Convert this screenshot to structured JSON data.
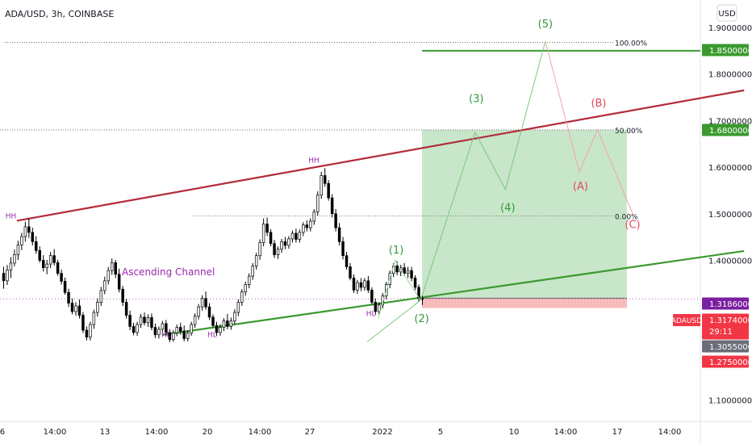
{
  "header": {
    "symbol_title": "ADA/USD, 3h, COINBASE",
    "currency_button": "USD"
  },
  "colors": {
    "up_candle": "#ffffff",
    "down_candle": "#000000",
    "resistance_line": "#b22b3b",
    "support_line": "#3a9a2e",
    "wave_green": "#2e9a3a",
    "wave_red": "#e04a5a",
    "profit_zone": "#c8e6c9",
    "loss_zone": "#f8bcbc",
    "last_price_bg": "#f23645",
    "purple_label": "#9c27b0"
  },
  "chart_data": {
    "type": "candlestick",
    "title": "ADA/USD, 3h, COINBASE",
    "ylim": [
      1.05,
      1.95
    ],
    "y_ticks": [
      "1.90000000",
      "1.80000000",
      "1.70000000",
      "1.60000000",
      "1.50000000",
      "1.40000000",
      "1.10000000"
    ],
    "x_ticks": [
      "6",
      "14:00",
      "13",
      "14:00",
      "20",
      "14:00",
      "27",
      "2022",
      "5",
      "10",
      "14:00",
      "17",
      "14:00"
    ],
    "price_labels": [
      {
        "text": "1.85000000",
        "kind": "green"
      },
      {
        "text": "1.68000000",
        "kind": "green"
      },
      {
        "text": "1.31860000",
        "kind": "purple"
      },
      {
        "text": "1.31740000",
        "kind": "red"
      },
      {
        "text": "29:11",
        "kind": "red-sub"
      },
      {
        "text": "1.30550000",
        "kind": "gray"
      },
      {
        "text": "1.27500000",
        "kind": "red"
      }
    ],
    "symbol_tag": "ADAUSD",
    "fib_levels": [
      {
        "label": "100.00%",
        "value": 1.868
      },
      {
        "label": "50.00%",
        "value": 1.68
      },
      {
        "label": "0.00%",
        "value": 1.495
      }
    ],
    "current_price": 1.3174,
    "position": {
      "entry": 1.3186,
      "target": 1.68,
      "stop": 1.2975
    },
    "channel_annotation": "Ascending Channel",
    "swing_labels": [
      {
        "text": "HH",
        "x": 0.5,
        "y": 1.49
      },
      {
        "text": "HH",
        "x": 25.5,
        "y": 1.61
      },
      {
        "text": "HL",
        "x": 13.3,
        "y": 1.235
      },
      {
        "text": "HL",
        "x": 17.1,
        "y": 1.235
      },
      {
        "text": "HL",
        "x": 30.2,
        "y": 1.28
      }
    ],
    "wave_labels": [
      {
        "text": "(1)",
        "x": 32.3,
        "y": 1.415,
        "color": "green"
      },
      {
        "text": "(2)",
        "x": 34.4,
        "y": 1.267,
        "color": "green"
      },
      {
        "text": "(3)",
        "x": 38.9,
        "y": 1.74,
        "color": "green"
      },
      {
        "text": "(4)",
        "x": 41.5,
        "y": 1.506,
        "color": "green"
      },
      {
        "text": "(5)",
        "x": 44.6,
        "y": 1.9,
        "color": "green"
      },
      {
        "text": "(A)",
        "x": 47.5,
        "y": 1.552,
        "color": "red"
      },
      {
        "text": "(B)",
        "x": 49.0,
        "y": 1.73,
        "color": "red"
      },
      {
        "text": "(C)",
        "x": 51.8,
        "y": 1.469,
        "color": "red"
      }
    ],
    "resistance_line": {
      "x": [
        1.0,
        61.0
      ],
      "y": [
        1.485,
        1.765
      ]
    },
    "support_line": {
      "x": [
        13.0,
        61.0
      ],
      "y": [
        1.24,
        1.42
      ]
    },
    "wave_path": {
      "x": [
        29.9,
        34.3,
        38.8,
        41.3,
        44.6,
        47.4,
        48.9,
        51.8
      ],
      "y": [
        1.225,
        1.314,
        1.675,
        1.552,
        1.87,
        1.59,
        1.68,
        1.5
      ]
    },
    "wave1_path": {
      "x": [
        30.8,
        32.2,
        34.3
      ],
      "y": [
        1.275,
        1.4,
        1.314
      ]
    },
    "candles": [
      {
        "o": 1.372,
        "h": 1.386,
        "l": 1.339,
        "c": 1.356
      },
      {
        "o": 1.356,
        "h": 1.39,
        "l": 1.347,
        "c": 1.379
      },
      {
        "o": 1.379,
        "h": 1.407,
        "l": 1.362,
        "c": 1.394
      },
      {
        "o": 1.394,
        "h": 1.423,
        "l": 1.387,
        "c": 1.412
      },
      {
        "o": 1.412,
        "h": 1.442,
        "l": 1.401,
        "c": 1.433
      },
      {
        "o": 1.433,
        "h": 1.459,
        "l": 1.422,
        "c": 1.451
      },
      {
        "o": 1.451,
        "h": 1.483,
        "l": 1.44,
        "c": 1.472
      },
      {
        "o": 1.472,
        "h": 1.49,
        "l": 1.448,
        "c": 1.46
      },
      {
        "o": 1.46,
        "h": 1.47,
        "l": 1.432,
        "c": 1.44
      },
      {
        "o": 1.44,
        "h": 1.452,
        "l": 1.414,
        "c": 1.421
      },
      {
        "o": 1.421,
        "h": 1.43,
        "l": 1.395,
        "c": 1.4
      },
      {
        "o": 1.4,
        "h": 1.411,
        "l": 1.376,
        "c": 1.384
      },
      {
        "o": 1.384,
        "h": 1.401,
        "l": 1.37,
        "c": 1.392
      },
      {
        "o": 1.392,
        "h": 1.418,
        "l": 1.383,
        "c": 1.41
      },
      {
        "o": 1.41,
        "h": 1.424,
        "l": 1.389,
        "c": 1.395
      },
      {
        "o": 1.395,
        "h": 1.401,
        "l": 1.367,
        "c": 1.372
      },
      {
        "o": 1.372,
        "h": 1.38,
        "l": 1.348,
        "c": 1.355
      },
      {
        "o": 1.355,
        "h": 1.363,
        "l": 1.326,
        "c": 1.331
      },
      {
        "o": 1.331,
        "h": 1.339,
        "l": 1.3,
        "c": 1.308
      },
      {
        "o": 1.308,
        "h": 1.318,
        "l": 1.284,
        "c": 1.29
      },
      {
        "o": 1.29,
        "h": 1.31,
        "l": 1.281,
        "c": 1.302
      },
      {
        "o": 1.302,
        "h": 1.316,
        "l": 1.275,
        "c": 1.282
      },
      {
        "o": 1.282,
        "h": 1.289,
        "l": 1.244,
        "c": 1.25
      },
      {
        "o": 1.25,
        "h": 1.258,
        "l": 1.228,
        "c": 1.235
      },
      {
        "o": 1.235,
        "h": 1.268,
        "l": 1.228,
        "c": 1.262
      },
      {
        "o": 1.262,
        "h": 1.294,
        "l": 1.253,
        "c": 1.288
      },
      {
        "o": 1.288,
        "h": 1.318,
        "l": 1.279,
        "c": 1.31
      },
      {
        "o": 1.31,
        "h": 1.343,
        "l": 1.302,
        "c": 1.335
      },
      {
        "o": 1.335,
        "h": 1.365,
        "l": 1.327,
        "c": 1.356
      },
      {
        "o": 1.356,
        "h": 1.386,
        "l": 1.348,
        "c": 1.378
      },
      {
        "o": 1.378,
        "h": 1.404,
        "l": 1.369,
        "c": 1.395
      },
      {
        "o": 1.395,
        "h": 1.401,
        "l": 1.362,
        "c": 1.37
      },
      {
        "o": 1.37,
        "h": 1.382,
        "l": 1.331,
        "c": 1.338
      },
      {
        "o": 1.338,
        "h": 1.345,
        "l": 1.302,
        "c": 1.31
      },
      {
        "o": 1.31,
        "h": 1.317,
        "l": 1.275,
        "c": 1.282
      },
      {
        "o": 1.282,
        "h": 1.292,
        "l": 1.25,
        "c": 1.258
      },
      {
        "o": 1.258,
        "h": 1.266,
        "l": 1.239,
        "c": 1.245
      },
      {
        "o": 1.245,
        "h": 1.268,
        "l": 1.238,
        "c": 1.262
      },
      {
        "o": 1.262,
        "h": 1.285,
        "l": 1.255,
        "c": 1.278
      },
      {
        "o": 1.278,
        "h": 1.288,
        "l": 1.26,
        "c": 1.266
      },
      {
        "o": 1.266,
        "h": 1.284,
        "l": 1.257,
        "c": 1.277
      },
      {
        "o": 1.277,
        "h": 1.286,
        "l": 1.25,
        "c": 1.256
      },
      {
        "o": 1.256,
        "h": 1.264,
        "l": 1.233,
        "c": 1.24
      },
      {
        "o": 1.24,
        "h": 1.258,
        "l": 1.232,
        "c": 1.252
      },
      {
        "o": 1.252,
        "h": 1.27,
        "l": 1.244,
        "c": 1.264
      },
      {
        "o": 1.264,
        "h": 1.272,
        "l": 1.238,
        "c": 1.245
      },
      {
        "o": 1.245,
        "h": 1.252,
        "l": 1.224,
        "c": 1.23
      },
      {
        "o": 1.23,
        "h": 1.25,
        "l": 1.225,
        "c": 1.244
      },
      {
        "o": 1.244,
        "h": 1.262,
        "l": 1.237,
        "c": 1.256
      },
      {
        "o": 1.256,
        "h": 1.266,
        "l": 1.24,
        "c": 1.248
      },
      {
        "o": 1.248,
        "h": 1.26,
        "l": 1.226,
        "c": 1.232
      },
      {
        "o": 1.232,
        "h": 1.25,
        "l": 1.226,
        "c": 1.244
      },
      {
        "o": 1.244,
        "h": 1.268,
        "l": 1.238,
        "c": 1.262
      },
      {
        "o": 1.262,
        "h": 1.286,
        "l": 1.255,
        "c": 1.28
      },
      {
        "o": 1.28,
        "h": 1.306,
        "l": 1.273,
        "c": 1.3
      },
      {
        "o": 1.3,
        "h": 1.325,
        "l": 1.292,
        "c": 1.318
      },
      {
        "o": 1.318,
        "h": 1.333,
        "l": 1.294,
        "c": 1.3
      },
      {
        "o": 1.3,
        "h": 1.308,
        "l": 1.272,
        "c": 1.278
      },
      {
        "o": 1.278,
        "h": 1.284,
        "l": 1.256,
        "c": 1.26
      },
      {
        "o": 1.26,
        "h": 1.268,
        "l": 1.238,
        "c": 1.245
      },
      {
        "o": 1.245,
        "h": 1.263,
        "l": 1.238,
        "c": 1.256
      },
      {
        "o": 1.256,
        "h": 1.276,
        "l": 1.248,
        "c": 1.27
      },
      {
        "o": 1.27,
        "h": 1.285,
        "l": 1.252,
        "c": 1.258
      },
      {
        "o": 1.258,
        "h": 1.277,
        "l": 1.251,
        "c": 1.27
      },
      {
        "o": 1.27,
        "h": 1.295,
        "l": 1.263,
        "c": 1.288
      },
      {
        "o": 1.288,
        "h": 1.316,
        "l": 1.28,
        "c": 1.31
      },
      {
        "o": 1.31,
        "h": 1.338,
        "l": 1.302,
        "c": 1.332
      },
      {
        "o": 1.332,
        "h": 1.354,
        "l": 1.324,
        "c": 1.348
      },
      {
        "o": 1.348,
        "h": 1.372,
        "l": 1.34,
        "c": 1.366
      },
      {
        "o": 1.366,
        "h": 1.394,
        "l": 1.358,
        "c": 1.388
      },
      {
        "o": 1.388,
        "h": 1.416,
        "l": 1.38,
        "c": 1.41
      },
      {
        "o": 1.41,
        "h": 1.445,
        "l": 1.401,
        "c": 1.438
      },
      {
        "o": 1.438,
        "h": 1.49,
        "l": 1.43,
        "c": 1.478
      },
      {
        "o": 1.478,
        "h": 1.492,
        "l": 1.452,
        "c": 1.46
      },
      {
        "o": 1.46,
        "h": 1.467,
        "l": 1.43,
        "c": 1.436
      },
      {
        "o": 1.436,
        "h": 1.444,
        "l": 1.405,
        "c": 1.412
      },
      {
        "o": 1.412,
        "h": 1.43,
        "l": 1.403,
        "c": 1.424
      },
      {
        "o": 1.424,
        "h": 1.446,
        "l": 1.416,
        "c": 1.44
      },
      {
        "o": 1.44,
        "h": 1.45,
        "l": 1.424,
        "c": 1.432
      },
      {
        "o": 1.432,
        "h": 1.452,
        "l": 1.425,
        "c": 1.446
      },
      {
        "o": 1.446,
        "h": 1.464,
        "l": 1.438,
        "c": 1.458
      },
      {
        "o": 1.458,
        "h": 1.468,
        "l": 1.438,
        "c": 1.445
      },
      {
        "o": 1.445,
        "h": 1.466,
        "l": 1.438,
        "c": 1.46
      },
      {
        "o": 1.46,
        "h": 1.482,
        "l": 1.452,
        "c": 1.476
      },
      {
        "o": 1.476,
        "h": 1.486,
        "l": 1.462,
        "c": 1.47
      },
      {
        "o": 1.47,
        "h": 1.49,
        "l": 1.462,
        "c": 1.484
      },
      {
        "o": 1.484,
        "h": 1.51,
        "l": 1.476,
        "c": 1.504
      },
      {
        "o": 1.504,
        "h": 1.548,
        "l": 1.496,
        "c": 1.54
      },
      {
        "o": 1.54,
        "h": 1.59,
        "l": 1.532,
        "c": 1.582
      },
      {
        "o": 1.582,
        "h": 1.598,
        "l": 1.558,
        "c": 1.565
      },
      {
        "o": 1.565,
        "h": 1.572,
        "l": 1.528,
        "c": 1.534
      },
      {
        "o": 1.534,
        "h": 1.542,
        "l": 1.492,
        "c": 1.5
      },
      {
        "o": 1.5,
        "h": 1.51,
        "l": 1.462,
        "c": 1.47
      },
      {
        "o": 1.47,
        "h": 1.48,
        "l": 1.432,
        "c": 1.44
      },
      {
        "o": 1.44,
        "h": 1.45,
        "l": 1.402,
        "c": 1.41
      },
      {
        "o": 1.41,
        "h": 1.418,
        "l": 1.38,
        "c": 1.386
      },
      {
        "o": 1.386,
        "h": 1.394,
        "l": 1.357,
        "c": 1.362
      },
      {
        "o": 1.362,
        "h": 1.37,
        "l": 1.33,
        "c": 1.336
      },
      {
        "o": 1.336,
        "h": 1.358,
        "l": 1.328,
        "c": 1.352
      },
      {
        "o": 1.352,
        "h": 1.362,
        "l": 1.334,
        "c": 1.342
      },
      {
        "o": 1.342,
        "h": 1.362,
        "l": 1.335,
        "c": 1.356
      },
      {
        "o": 1.356,
        "h": 1.366,
        "l": 1.33,
        "c": 1.336
      },
      {
        "o": 1.336,
        "h": 1.342,
        "l": 1.305,
        "c": 1.31
      },
      {
        "o": 1.31,
        "h": 1.318,
        "l": 1.283,
        "c": 1.29
      },
      {
        "o": 1.29,
        "h": 1.31,
        "l": 1.284,
        "c": 1.304
      },
      {
        "o": 1.304,
        "h": 1.33,
        "l": 1.297,
        "c": 1.324
      },
      {
        "o": 1.324,
        "h": 1.354,
        "l": 1.316,
        "c": 1.348
      },
      {
        "o": 1.348,
        "h": 1.378,
        "l": 1.34,
        "c": 1.372
      },
      {
        "o": 1.372,
        "h": 1.394,
        "l": 1.364,
        "c": 1.388
      },
      {
        "o": 1.388,
        "h": 1.398,
        "l": 1.368,
        "c": 1.375
      },
      {
        "o": 1.375,
        "h": 1.39,
        "l": 1.366,
        "c": 1.384
      },
      {
        "o": 1.384,
        "h": 1.394,
        "l": 1.366,
        "c": 1.372
      },
      {
        "o": 1.372,
        "h": 1.386,
        "l": 1.362,
        "c": 1.378
      },
      {
        "o": 1.378,
        "h": 1.386,
        "l": 1.355,
        "c": 1.362
      },
      {
        "o": 1.362,
        "h": 1.368,
        "l": 1.336,
        "c": 1.342
      },
      {
        "o": 1.342,
        "h": 1.348,
        "l": 1.312,
        "c": 1.318
      },
      {
        "o": 1.318,
        "h": 1.326,
        "l": 1.304,
        "c": 1.3174
      }
    ]
  }
}
